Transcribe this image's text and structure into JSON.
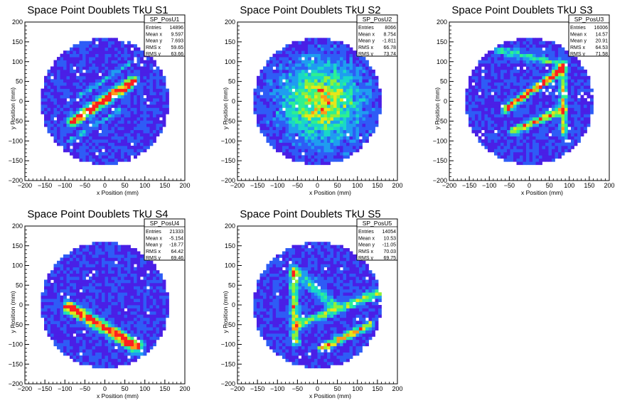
{
  "colors": {
    "palette": [
      "#5a00b4",
      "#4a1fe6",
      "#2e5cf6",
      "#1f9df0",
      "#19d7c8",
      "#2ef090",
      "#8ef03a",
      "#e6e61a",
      "#ff9a1a",
      "#ff1f1f"
    ],
    "frame": "#000000",
    "background": "#ffffff"
  },
  "chart_data": [
    {
      "type": "heatmap",
      "title": "Space Point Doublets TkU S1",
      "xlabel": "x Position (mm)",
      "ylabel": "y Position (mm)",
      "xlim": [
        -200,
        200
      ],
      "ylim": [
        -200,
        200
      ],
      "x_ticks": [
        "−200",
        "−150",
        "−100",
        "−50",
        "0",
        "50",
        "100",
        "150",
        "200"
      ],
      "y_ticks": [
        "−200",
        "−150",
        "−100",
        "−50",
        "0",
        "50",
        "100",
        "150",
        "200"
      ],
      "radius": 160,
      "hot_bands": [
        {
          "from": [
            -80,
            -50
          ],
          "to": [
            70,
            50
          ],
          "width": 8,
          "peak": 1.0
        }
      ],
      "warm_bands": [
        {
          "from": [
            -60,
            15
          ],
          "to": [
            60,
            95
          ],
          "width": 4,
          "peak": 0.22
        },
        {
          "from": [
            -90,
            -100
          ],
          "to": [
            40,
            -20
          ],
          "width": 4,
          "peak": 0.2
        }
      ],
      "stats": {
        "name": "SP_PosU1",
        "rows": [
          [
            "Entries",
            "14896"
          ],
          [
            "Mean x",
            "9.597"
          ],
          [
            "Mean y",
            "7.693"
          ],
          [
            "RMS x",
            "59.65"
          ],
          [
            "RMS y",
            "63.66"
          ]
        ]
      }
    },
    {
      "type": "heatmap",
      "title": "Space Point Doublets TkU S2",
      "xlabel": "x Position (mm)",
      "ylabel": "y Position (mm)",
      "xlim": [
        -200,
        200
      ],
      "ylim": [
        -200,
        200
      ],
      "x_ticks": [
        "−200",
        "−150",
        "−100",
        "−50",
        "0",
        "50",
        "100",
        "150",
        "200"
      ],
      "y_ticks": [
        "−200",
        "−150",
        "−100",
        "−50",
        "0",
        "50",
        "100",
        "150",
        "200"
      ],
      "radius": 160,
      "blob": {
        "center": [
          10,
          0
        ],
        "sigma": 60,
        "peak": 0.55
      },
      "hot_bands": [],
      "warm_bands": [],
      "stats": {
        "name": "SP_PosU2",
        "rows": [
          [
            "Entries",
            "8066"
          ],
          [
            "Mean x",
            "8.754"
          ],
          [
            "Mean y",
            "-1.811"
          ],
          [
            "RMS x",
            "66.78"
          ],
          [
            "RMS y",
            "73.74"
          ]
        ]
      }
    },
    {
      "type": "heatmap",
      "title": "Space Point Doublets TkU S3",
      "xlabel": "x Position (mm)",
      "ylabel": "y Position (mm)",
      "xlim": [
        -200,
        200
      ],
      "ylim": [
        -200,
        200
      ],
      "x_ticks": [
        "−200",
        "−150",
        "−100",
        "−50",
        "0",
        "50",
        "100",
        "150",
        "200"
      ],
      "y_ticks": [
        "−200",
        "−150",
        "−100",
        "−50",
        "0",
        "50",
        "100",
        "150",
        "200"
      ],
      "radius": 160,
      "hot_bands": [
        {
          "from": [
            -60,
            -20
          ],
          "to": [
            80,
            80
          ],
          "width": 6,
          "peak": 0.9
        },
        {
          "from": [
            -40,
            -75
          ],
          "to": [
            85,
            -20
          ],
          "width": 6,
          "peak": 0.7
        }
      ],
      "warm_bands": [
        {
          "from": [
            85,
            90
          ],
          "to": [
            85,
            -80
          ],
          "width": 6,
          "peak": 0.5
        },
        {
          "from": [
            -80,
            130
          ],
          "to": [
            85,
            95
          ],
          "width": 6,
          "peak": 0.35
        }
      ],
      "stats": {
        "name": "SP_PosU3",
        "rows": [
          [
            "Entries",
            "16006"
          ],
          [
            "Mean x",
            "14.57"
          ],
          [
            "Mean y",
            "20.91"
          ],
          [
            "RMS x",
            "64.53"
          ],
          [
            "RMS y",
            "71.58"
          ]
        ]
      }
    },
    {
      "type": "heatmap",
      "title": "Space Point Doublets TkU S4",
      "xlabel": "x Position (mm)",
      "ylabel": "y Position (mm)",
      "xlim": [
        -200,
        200
      ],
      "ylim": [
        -200,
        200
      ],
      "x_ticks": [
        "−200",
        "−150",
        "−100",
        "−50",
        "0",
        "50",
        "100",
        "150",
        "200"
      ],
      "y_ticks": [
        "−200",
        "−150",
        "−100",
        "−50",
        "0",
        "50",
        "100",
        "150",
        "200"
      ],
      "radius": 160,
      "hot_bands": [
        {
          "from": [
            -90,
            -5
          ],
          "to": [
            80,
            -105
          ],
          "width": 9,
          "peak": 1.0
        }
      ],
      "warm_bands": [],
      "stats": {
        "name": "SP_PosU4",
        "rows": [
          [
            "Entries",
            "21333"
          ],
          [
            "Mean x",
            "-5.154"
          ],
          [
            "Mean y",
            "-18.77"
          ],
          [
            "RMS x",
            "64.42"
          ],
          [
            "RMS y",
            "69.46"
          ]
        ]
      }
    },
    {
      "type": "heatmap",
      "title": "Space Point Doublets TkU S5",
      "xlabel": "x Position (mm)",
      "ylabel": "y Position (mm)",
      "xlim": [
        -200,
        200
      ],
      "ylim": [
        -200,
        200
      ],
      "x_ticks": [
        "−200",
        "−150",
        "−100",
        "−50",
        "0",
        "50",
        "100",
        "150",
        "200"
      ],
      "y_ticks": [
        "−200",
        "−150",
        "−100",
        "−50",
        "0",
        "50",
        "100",
        "150",
        "200"
      ],
      "radius": 160,
      "hot_bands": [
        {
          "from": [
            -60,
            90
          ],
          "to": [
            -55,
            -90
          ],
          "width": 7,
          "peak": 0.55
        },
        {
          "from": [
            10,
            -110
          ],
          "to": [
            130,
            -50
          ],
          "width": 6,
          "peak": 0.7
        }
      ],
      "warm_bands": [
        {
          "from": [
            -50,
            -50
          ],
          "to": [
            150,
            30
          ],
          "width": 7,
          "peak": 0.45
        },
        {
          "from": [
            -50,
            80
          ],
          "to": [
            40,
            0
          ],
          "width": 10,
          "peak": 0.3
        }
      ],
      "stats": {
        "name": "SP_PosU5",
        "rows": [
          [
            "Entries",
            "14054"
          ],
          [
            "Mean x",
            "10.53"
          ],
          [
            "Mean y",
            "-11.05"
          ],
          [
            "RMS x",
            "70.03"
          ],
          [
            "RMS y",
            "69.75"
          ]
        ]
      }
    }
  ]
}
